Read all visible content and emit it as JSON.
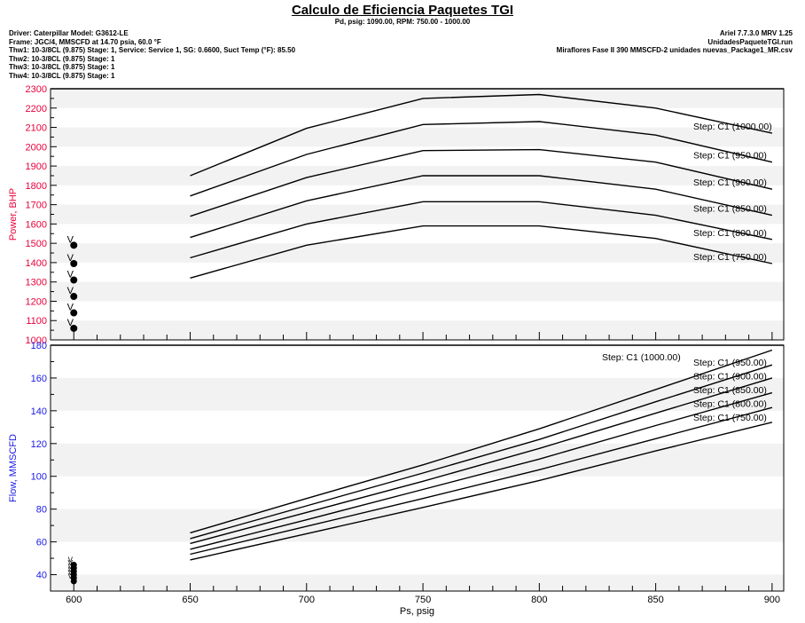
{
  "title": "Calculo de Eficiencia Paquetes TGI",
  "subtitle": "Pd, psig: 1090.00, RPM: 750.00 - 1000.00",
  "header_left": [
    "Driver: Caterpillar    Model: G3612-LE",
    "Frame: JGC/4, MMSCFD at 14.70 psia, 60.0 °F",
    "Thw1: 10-3/8CL (9.875)   Stage: 1, Service: Service 1, SG: 0.6600,  Suct Temp (°F): 85.50",
    "Thw2: 10-3/8CL (9.875)   Stage: 1",
    "Thw3: 10-3/8CL (9.875)   Stage: 1",
    "Thw4: 10-3/8CL (9.875)   Stage: 1"
  ],
  "header_right": [
    "Ariel 7.7.3.0  MRV 1.25",
    "UnidadesPaqueteTGI.run",
    "Miraflores Fase II 390 MMSCFD-2 unidades nuevas_Package1_MR.csv"
  ],
  "colors": {
    "power_axis": "#e8003a",
    "flow_axis": "#1a1ae6",
    "band": "#f2f2f2",
    "line": "#000000"
  },
  "chart_data": [
    {
      "type": "line",
      "ylabel": "Power, BHP",
      "xlim": [
        590,
        905
      ],
      "ylim": [
        1000,
        2300
      ],
      "y_ticks": [
        1000,
        1100,
        1200,
        1300,
        1400,
        1500,
        1600,
        1700,
        1800,
        1900,
        2000,
        2100,
        2200,
        2300
      ],
      "x": [
        650,
        700,
        750,
        800,
        850,
        900
      ],
      "series": [
        {
          "name": "Step: C1 (1000.00)",
          "values": [
            1850,
            2095,
            2250,
            2270,
            2200,
            2070
          ]
        },
        {
          "name": "Step: C1 (950.00)",
          "values": [
            1745,
            1960,
            2115,
            2130,
            2060,
            1920
          ]
        },
        {
          "name": "Step: C1 (900.00)",
          "values": [
            1640,
            1840,
            1980,
            1985,
            1920,
            1780
          ]
        },
        {
          "name": "Step: C1 (850.00)",
          "values": [
            1530,
            1720,
            1850,
            1850,
            1780,
            1645
          ]
        },
        {
          "name": "Step: C1 (800.00)",
          "values": [
            1425,
            1600,
            1715,
            1715,
            1645,
            1520
          ]
        },
        {
          "name": "Step: C1 (750.00)",
          "values": [
            1320,
            1490,
            1590,
            1590,
            1525,
            1395
          ]
        }
      ],
      "markers": {
        "x": 600,
        "values": [
          1490,
          1395,
          1310,
          1225,
          1140,
          1060
        ],
        "label": "V"
      }
    },
    {
      "type": "line",
      "xlabel": "Ps, psig",
      "ylabel": "Flow, MMSCFD",
      "xlim": [
        590,
        905
      ],
      "ylim": [
        30,
        180
      ],
      "y_ticks": [
        40,
        60,
        80,
        100,
        120,
        140,
        160,
        180
      ],
      "x_ticks": [
        600,
        650,
        700,
        750,
        800,
        850,
        900
      ],
      "x": [
        650,
        700,
        750,
        800,
        850,
        900
      ],
      "series": [
        {
          "name": "Step: C1 (1000.00)",
          "values": [
            65.5,
            86.5,
            107,
            129,
            153,
            177
          ]
        },
        {
          "name": "Step: C1 (950.00)",
          "values": [
            62,
            82,
            102,
            122.5,
            145.5,
            168
          ]
        },
        {
          "name": "Step: C1 (900.00)",
          "values": [
            59,
            78,
            97,
            117,
            138.5,
            160
          ]
        },
        {
          "name": "Step: C1 (850.00)",
          "values": [
            55.5,
            73.5,
            92,
            110.5,
            131,
            151
          ]
        },
        {
          "name": "Step: C1 (800.00)",
          "values": [
            52.5,
            69.5,
            86.5,
            104,
            123,
            142
          ]
        },
        {
          "name": "Step: C1 (750.00)",
          "values": [
            49,
            65,
            81,
            97.5,
            115.5,
            133
          ]
        }
      ],
      "markers": {
        "x": 600,
        "values": [
          46,
          44,
          42,
          40,
          38,
          36
        ],
        "label": "V"
      }
    }
  ]
}
